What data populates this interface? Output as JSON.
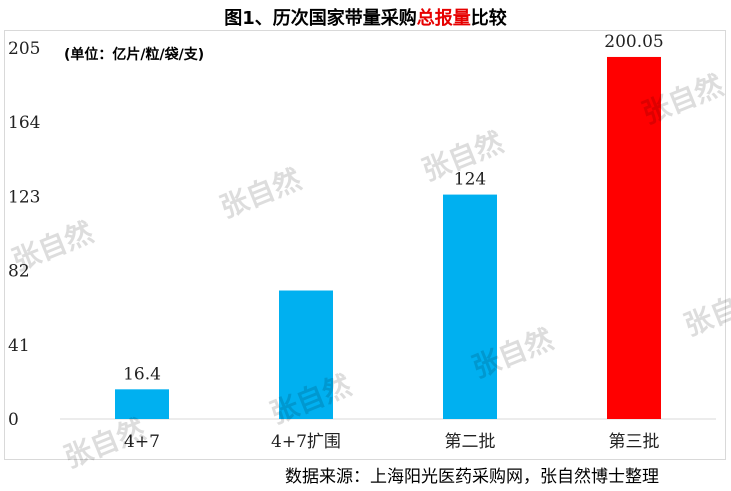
{
  "title": {
    "before": "图1、历次国家带量采购",
    "highlight": "总报量",
    "after": "比较"
  },
  "unit_note": "(单位：亿片/粒/袋/支)",
  "source_note": "数据来源：上海阳光医药采购网，张自然博士整理",
  "watermark_text": "张自然",
  "colors": {
    "bar": "#00b0f0",
    "bar_highlight": "#ff0000",
    "title_highlight": "#e60000"
  },
  "chart_data": {
    "type": "bar",
    "categories": [
      "4+7",
      "4+7扩围",
      "第二批",
      "第三批"
    ],
    "values": [
      16.4,
      71,
      124,
      200.05
    ],
    "data_labels": [
      "16.4",
      "",
      "124",
      "200.05"
    ],
    "highlight_index": 3,
    "ylim": [
      0,
      205
    ],
    "yticks": [
      "0",
      "41",
      "82",
      "123",
      "164",
      "205"
    ],
    "grid": false
  }
}
